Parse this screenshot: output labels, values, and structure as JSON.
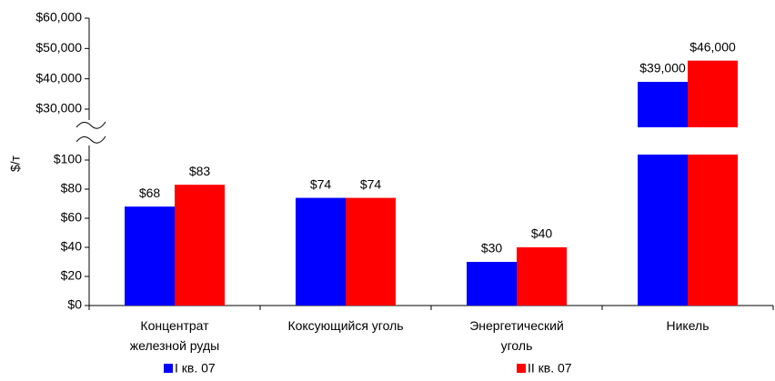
{
  "chart_data": {
    "type": "bar",
    "ylabel": "$/т",
    "categories": [
      "Концентрат\nжелезной руды",
      "Коксующийся уголь",
      "Энергетический\nуголь",
      "Никель"
    ],
    "series": [
      {
        "name": "I кв. 07",
        "color": "#0000ff",
        "values": [
          68,
          74,
          30,
          39000
        ],
        "value_labels": [
          "$68",
          "$74",
          "$30",
          "$39,000"
        ]
      },
      {
        "name": "II кв. 07",
        "color": "#ff0000",
        "values": [
          83,
          74,
          40,
          46000
        ],
        "value_labels": [
          "$83",
          "$74",
          "$40",
          "$46,000"
        ]
      }
    ],
    "ylim": [
      0,
      100
    ],
    "yticks": [
      {
        "value": 0,
        "label": "$0"
      },
      {
        "value": 20,
        "label": "$20"
      },
      {
        "value": 40,
        "label": "$40"
      },
      {
        "value": 60,
        "label": "$60"
      },
      {
        "value": 80,
        "label": "$80"
      },
      {
        "value": 100,
        "label": "$100"
      }
    ],
    "upper_ylim": [
      24000,
      60000
    ],
    "upper_yticks": [
      {
        "value": 30000,
        "label": "$30,000"
      },
      {
        "value": 40000,
        "label": "$40,000"
      },
      {
        "value": 50000,
        "label": "$50,000"
      },
      {
        "value": 60000,
        "label": "$60,000"
      }
    ]
  }
}
